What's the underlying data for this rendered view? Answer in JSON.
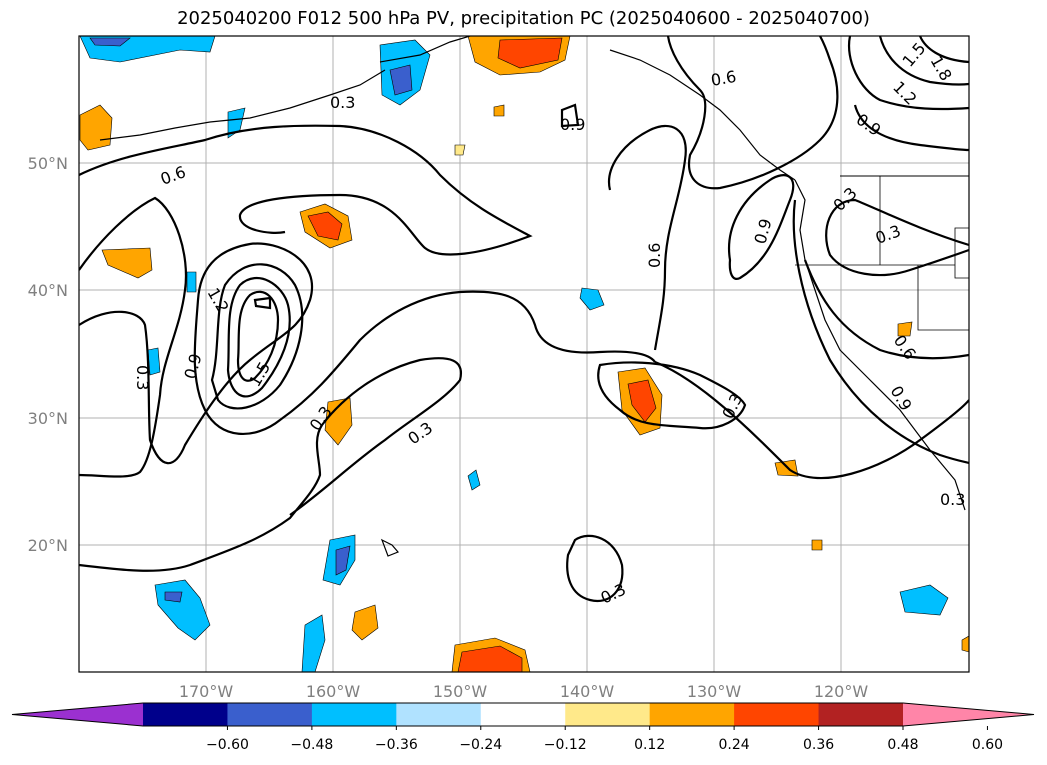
{
  "title": "2025040200 F012 500 hPa PV, precipitation PC (2025040600 - 2025040700)",
  "map": {
    "lat_labels": [
      "50°N",
      "40°N",
      "30°N",
      "20°N"
    ],
    "lon_labels": [
      "170°W",
      "160°W",
      "150°W",
      "140°W",
      "130°W",
      "120°W"
    ],
    "contour_labels": [
      "0.3",
      "0.6",
      "0.9",
      "1.2",
      "1.5",
      "1.8",
      "0.6",
      "0.9",
      "1.2",
      "1.5",
      "0.3",
      "0.3",
      "0.3",
      "0.6",
      "0.9",
      "0.3",
      "0.3",
      "0.3",
      "0.3",
      "0.6",
      "0.9",
      "0.9",
      "0.3"
    ]
  },
  "colorbar": {
    "ticks": [
      "−0.60",
      "−0.48",
      "−0.36",
      "−0.24",
      "−0.12",
      "0.12",
      "0.24",
      "0.36",
      "0.48",
      "0.60"
    ],
    "colors": [
      "#9b30d0",
      "#00008b",
      "#3a5fcd",
      "#00bfff",
      "#b0e2ff",
      "#ffffff",
      "#ffe98a",
      "#ffa500",
      "#ff4500",
      "#b22222",
      "#ff85a8"
    ]
  }
}
